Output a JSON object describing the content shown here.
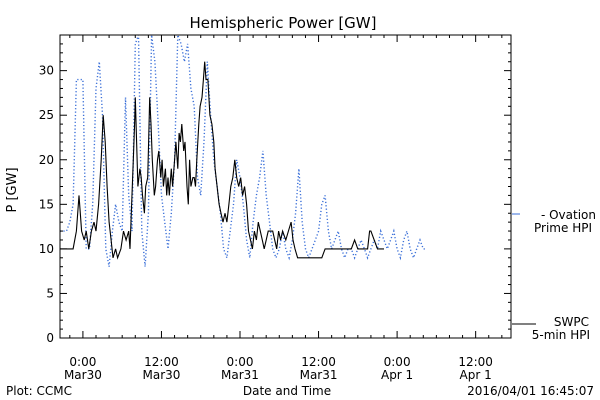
{
  "chart_data": {
    "type": "line",
    "title": "Hemispheric Power [GW]",
    "xlabel": "Date and Time",
    "ylabel": "P [GW]",
    "ylim": [
      0,
      34
    ],
    "y_ticks": [
      0,
      5,
      10,
      15,
      20,
      25,
      30
    ],
    "x_unit": "hours since 2016-03-29 00:00",
    "xlim": [
      20.5,
      89.4
    ],
    "x_ticks": [
      {
        "x": 24,
        "label": [
          "0:00",
          "Mar30"
        ]
      },
      {
        "x": 36,
        "label": [
          "12:00",
          "Mar30"
        ]
      },
      {
        "x": 48,
        "label": [
          "0:00",
          "Mar31"
        ]
      },
      {
        "x": 60,
        "label": [
          "12:00",
          "Mar31"
        ]
      },
      {
        "x": 72,
        "label": [
          "0:00",
          "Apr 1"
        ]
      },
      {
        "x": 84,
        "label": [
          "12:00",
          "Apr 1"
        ]
      }
    ],
    "legend": [
      {
        "name": "- Ovation Prime HPI",
        "color": "#3a6fd8",
        "style": "dotted"
      },
      {
        "name": "SWPC 5-min HPI",
        "color": "#000000",
        "style": "solid"
      }
    ],
    "series": [
      {
        "name": "SWPC 5-min HPI",
        "color": "#000000",
        "style": "solid",
        "points": [
          [
            20.5,
            10
          ],
          [
            22.5,
            10
          ],
          [
            23.0,
            12
          ],
          [
            23.4,
            16
          ],
          [
            23.8,
            12
          ],
          [
            24.2,
            11
          ],
          [
            24.5,
            12
          ],
          [
            24.9,
            10
          ],
          [
            25.3,
            12
          ],
          [
            25.7,
            13
          ],
          [
            26.0,
            12
          ],
          [
            26.4,
            15
          ],
          [
            26.8,
            20
          ],
          [
            27.1,
            25
          ],
          [
            27.4,
            22
          ],
          [
            27.7,
            17
          ],
          [
            28.0,
            13
          ],
          [
            28.3,
            11
          ],
          [
            28.6,
            9
          ],
          [
            29.0,
            10
          ],
          [
            29.3,
            9
          ],
          [
            29.8,
            10
          ],
          [
            30.2,
            12
          ],
          [
            30.6,
            11
          ],
          [
            31.0,
            12
          ],
          [
            31.2,
            10
          ],
          [
            31.4,
            14
          ],
          [
            31.7,
            20
          ],
          [
            31.9,
            24
          ],
          [
            32.0,
            27
          ],
          [
            32.2,
            22
          ],
          [
            32.4,
            17
          ],
          [
            32.7,
            19
          ],
          [
            32.9,
            18
          ],
          [
            33.1,
            16
          ],
          [
            33.4,
            14
          ],
          [
            33.6,
            17
          ],
          [
            33.9,
            18
          ],
          [
            34.0,
            21
          ],
          [
            34.2,
            27
          ],
          [
            34.4,
            24
          ],
          [
            34.6,
            20
          ],
          [
            34.9,
            16
          ],
          [
            35.1,
            17
          ],
          [
            35.4,
            20
          ],
          [
            35.6,
            21
          ],
          [
            35.9,
            18
          ],
          [
            36.1,
            20
          ],
          [
            36.3,
            17
          ],
          [
            36.6,
            19
          ],
          [
            36.8,
            16
          ],
          [
            37.0,
            18
          ],
          [
            37.2,
            16
          ],
          [
            37.5,
            19
          ],
          [
            37.7,
            17
          ],
          [
            38.0,
            20
          ],
          [
            38.2,
            22
          ],
          [
            38.5,
            19
          ],
          [
            38.7,
            23
          ],
          [
            38.9,
            22
          ],
          [
            39.1,
            24
          ],
          [
            39.4,
            21
          ],
          [
            39.6,
            22
          ],
          [
            39.9,
            17
          ],
          [
            40.1,
            15
          ],
          [
            40.3,
            20
          ],
          [
            40.5,
            17
          ],
          [
            40.8,
            18
          ],
          [
            41.0,
            18
          ],
          [
            41.2,
            17
          ],
          [
            41.4,
            20
          ],
          [
            41.7,
            24
          ],
          [
            41.9,
            26
          ],
          [
            42.2,
            27
          ],
          [
            42.4,
            29
          ],
          [
            42.6,
            31
          ],
          [
            42.8,
            29
          ],
          [
            43.1,
            29
          ],
          [
            43.4,
            25
          ],
          [
            43.7,
            24
          ],
          [
            44.0,
            22
          ],
          [
            44.2,
            19
          ],
          [
            44.5,
            17
          ],
          [
            44.8,
            15
          ],
          [
            45.1,
            14
          ],
          [
            45.4,
            13
          ],
          [
            45.7,
            14
          ],
          [
            46.0,
            13
          ],
          [
            46.3,
            15
          ],
          [
            46.6,
            17
          ],
          [
            46.9,
            18
          ],
          [
            47.2,
            20
          ],
          [
            47.5,
            18
          ],
          [
            47.8,
            17
          ],
          [
            48.1,
            18
          ],
          [
            48.4,
            16
          ],
          [
            48.7,
            17
          ],
          [
            49.0,
            15
          ],
          [
            49.3,
            12
          ],
          [
            49.6,
            11
          ],
          [
            49.9,
            10
          ],
          [
            50.2,
            12
          ],
          [
            50.5,
            11
          ],
          [
            50.8,
            13
          ],
          [
            51.1,
            12
          ],
          [
            51.4,
            11
          ],
          [
            51.7,
            10
          ],
          [
            52.0,
            11
          ],
          [
            52.3,
            12
          ],
          [
            53.0,
            12
          ],
          [
            53.3,
            11
          ],
          [
            53.6,
            10
          ],
          [
            53.9,
            12
          ],
          [
            54.2,
            11
          ],
          [
            54.5,
            12
          ],
          [
            55.0,
            11
          ],
          [
            55.4,
            12
          ],
          [
            55.8,
            13
          ],
          [
            56.1,
            11
          ],
          [
            56.4,
            10
          ],
          [
            56.8,
            9
          ],
          [
            57.5,
            9
          ],
          [
            58.5,
            9
          ],
          [
            59.5,
            9
          ],
          [
            60.5,
            9
          ],
          [
            61.0,
            10
          ],
          [
            61.5,
            10
          ],
          [
            62.0,
            10
          ],
          [
            63.0,
            10
          ],
          [
            64.0,
            10
          ],
          [
            65.0,
            10
          ],
          [
            65.5,
            11
          ],
          [
            66.0,
            10
          ],
          [
            66.5,
            10
          ],
          [
            67.0,
            10
          ],
          [
            67.5,
            10
          ],
          [
            67.8,
            12
          ],
          [
            68.0,
            12
          ],
          [
            69.0,
            10
          ],
          [
            70.0,
            10
          ]
        ]
      },
      {
        "name": "Ovation Prime HPI",
        "color": "#3a6fd8",
        "style": "dotted",
        "points": [
          [
            20.5,
            12
          ],
          [
            21.5,
            12
          ],
          [
            22.0,
            13
          ],
          [
            22.5,
            15
          ],
          [
            23.0,
            29
          ],
          [
            24.0,
            29
          ],
          [
            24.5,
            10
          ],
          [
            25.0,
            10
          ],
          [
            25.5,
            15
          ],
          [
            26.0,
            28
          ],
          [
            26.5,
            31
          ],
          [
            27.0,
            25
          ],
          [
            27.5,
            10
          ],
          [
            28.0,
            8
          ],
          [
            28.5,
            12
          ],
          [
            29.0,
            15
          ],
          [
            29.5,
            13
          ],
          [
            30.0,
            12
          ],
          [
            30.5,
            27
          ],
          [
            31.0,
            16
          ],
          [
            31.5,
            12
          ],
          [
            32.0,
            33
          ],
          [
            32.5,
            34
          ],
          [
            33.0,
            12
          ],
          [
            33.5,
            8
          ],
          [
            34.0,
            14
          ],
          [
            34.5,
            34
          ],
          [
            35.0,
            31
          ],
          [
            35.5,
            24
          ],
          [
            36.0,
            16
          ],
          [
            36.5,
            13
          ],
          [
            37.0,
            10
          ],
          [
            37.5,
            14
          ],
          [
            38.0,
            20
          ],
          [
            38.5,
            34
          ],
          [
            39.0,
            33
          ],
          [
            39.5,
            31
          ],
          [
            40.0,
            33
          ],
          [
            40.5,
            28
          ],
          [
            41.0,
            26
          ],
          [
            41.5,
            18
          ],
          [
            42.0,
            16
          ],
          [
            42.5,
            22
          ],
          [
            43.0,
            31
          ],
          [
            43.5,
            25
          ],
          [
            44.0,
            20
          ],
          [
            44.5,
            17
          ],
          [
            45.0,
            14
          ],
          [
            45.5,
            10
          ],
          [
            46.0,
            9
          ],
          [
            46.5,
            12
          ],
          [
            47.0,
            15
          ],
          [
            47.5,
            20
          ],
          [
            48.0,
            18
          ],
          [
            48.5,
            15
          ],
          [
            49.0,
            11
          ],
          [
            49.5,
            9
          ],
          [
            50.0,
            13
          ],
          [
            50.5,
            16
          ],
          [
            51.0,
            18
          ],
          [
            51.5,
            21
          ],
          [
            52.0,
            16
          ],
          [
            52.5,
            13
          ],
          [
            53.0,
            10
          ],
          [
            53.5,
            9
          ],
          [
            54.0,
            10
          ],
          [
            54.5,
            12
          ],
          [
            55.0,
            10
          ],
          [
            55.5,
            9
          ],
          [
            56.0,
            11
          ],
          [
            56.5,
            14
          ],
          [
            57.0,
            19
          ],
          [
            57.5,
            13
          ],
          [
            58.0,
            10
          ],
          [
            58.5,
            9
          ],
          [
            59.0,
            10
          ],
          [
            60.0,
            12
          ],
          [
            60.5,
            15
          ],
          [
            61.0,
            16
          ],
          [
            61.5,
            12
          ],
          [
            62.0,
            10
          ],
          [
            62.5,
            11
          ],
          [
            63.0,
            12
          ],
          [
            63.5,
            10
          ],
          [
            64.0,
            9
          ],
          [
            64.5,
            10
          ],
          [
            65.0,
            10
          ],
          [
            65.5,
            9
          ],
          [
            66.0,
            10
          ],
          [
            66.5,
            11
          ],
          [
            67.0,
            10
          ],
          [
            67.5,
            9
          ],
          [
            68.0,
            10
          ],
          [
            68.5,
            11
          ],
          [
            69.0,
            10
          ],
          [
            69.5,
            12
          ],
          [
            70.0,
            11
          ],
          [
            70.5,
            10
          ],
          [
            71.0,
            11
          ],
          [
            71.5,
            12
          ],
          [
            72.0,
            10
          ],
          [
            72.5,
            9
          ],
          [
            73.0,
            11
          ],
          [
            73.5,
            12
          ],
          [
            74.0,
            10
          ],
          [
            74.5,
            9
          ],
          [
            75.0,
            10
          ],
          [
            75.5,
            11
          ],
          [
            76.0,
            10
          ],
          [
            76.5,
            10
          ]
        ]
      }
    ]
  },
  "footer": {
    "left": "Plot: CCMC",
    "center": "Date and Time",
    "right": "2016/04/01  16:45:07"
  }
}
